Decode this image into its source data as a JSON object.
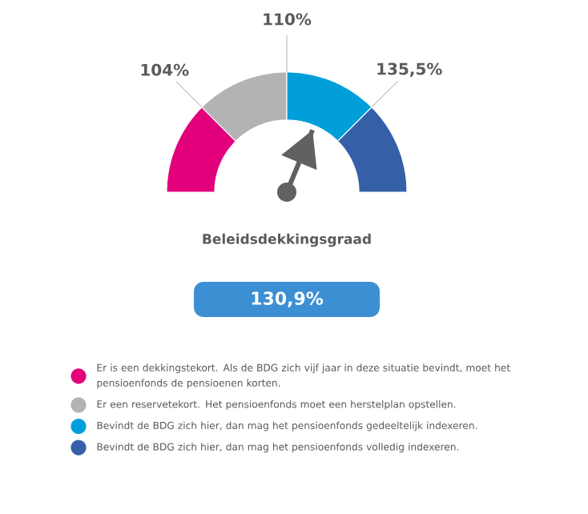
{
  "chart_data": {
    "type": "donut",
    "title": "Beleidsdekkingsgraad",
    "categories": [
      "Er is een dekkingstekort. Als de BDG zich vijf jaar in deze situatie bevindt, moet het pensioenfonds de pensioenen korten.",
      "Er een reservetekort. Het pensioenfonds moet een herstelplan opstellen.",
      "Bevindt de BDG zich hier, dan mag het pensioenfonds gedeeltelijk indexeren.",
      "Bevindt de BDG zich hier, dan mag het pensioenfonds volledig indexeren."
    ],
    "values": [
      25,
      25,
      25,
      25
    ],
    "colors": [
      "#e3007d",
      "#b3b3b3",
      "#009fdb",
      "#3560a8"
    ],
    "needle": "Bevindt de BDG zich hier, dan mag het pensioenfonds gedeeltelijk indexeren.",
    "legend": "bottom",
    "annotations": [
      "104%",
      "110%",
      "135,5%",
      "130,9%"
    ]
  }
}
